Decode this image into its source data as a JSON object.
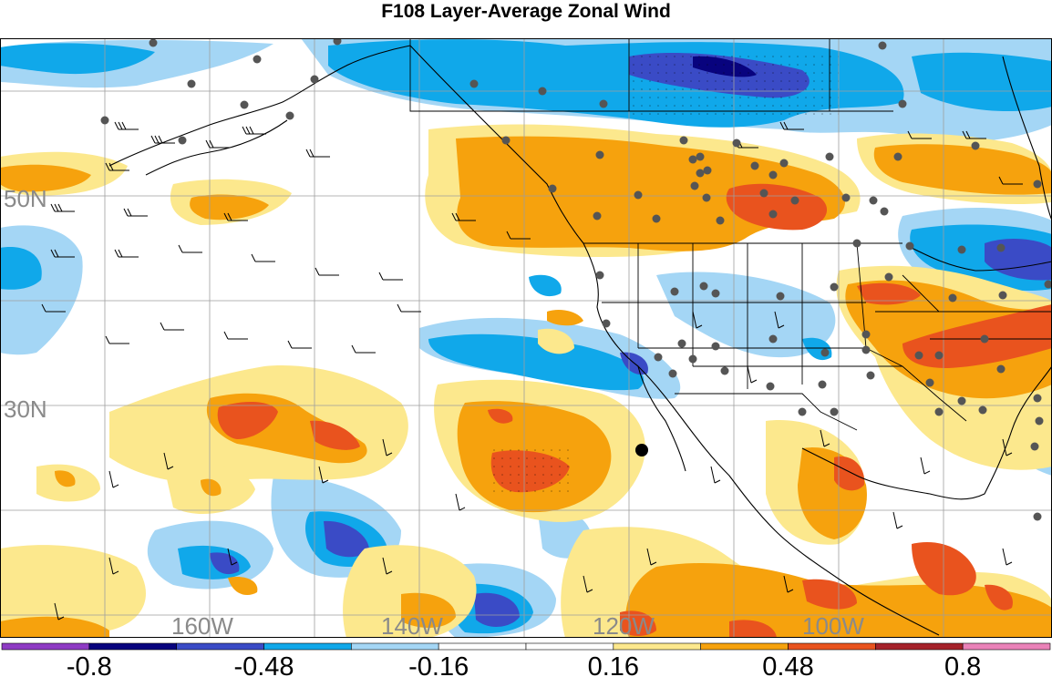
{
  "title": "F108 Layer-Average Zonal Wind",
  "map": {
    "lat_labels": [
      "50N",
      "30N"
    ],
    "lon_labels": [
      "160W",
      "140W",
      "120W",
      "100W"
    ],
    "marker": "observation-station-dot"
  },
  "colorbar": {
    "colors": [
      "#8e3bc4",
      "#08037e",
      "#3a4bc6",
      "#10a8ea",
      "#a4d6f5",
      "#ffffff",
      "#ffffff",
      "#fce88d",
      "#f6a20d",
      "#e9531e",
      "#a5222a",
      "#ea82b8"
    ],
    "tick_labels": [
      "-0.8",
      "-0.48",
      "-0.16",
      "0.16",
      "0.48",
      "0.8"
    ]
  }
}
